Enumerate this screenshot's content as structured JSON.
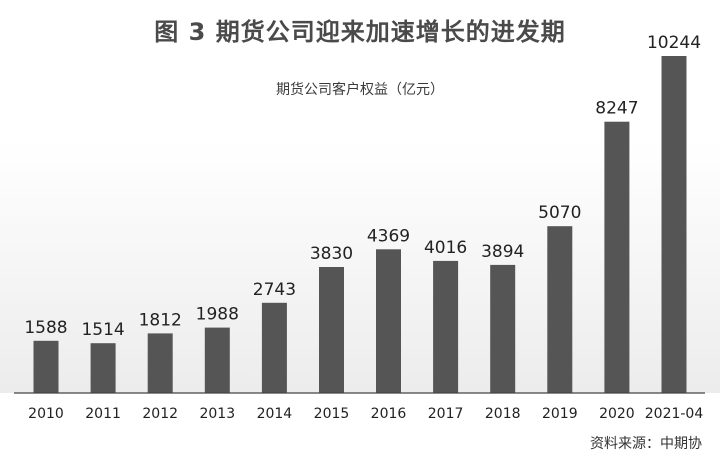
{
  "chart_data": {
    "type": "bar",
    "title": "图 3  期货公司迎来加速增长的进发期",
    "subtitle": "期货公司客户权益（亿元）",
    "categories": [
      "2010",
      "2011",
      "2012",
      "2013",
      "2014",
      "2015",
      "2016",
      "2017",
      "2018",
      "2019",
      "2020",
      "2021-04"
    ],
    "values": [
      1588,
      1514,
      1812,
      1988,
      2743,
      3830,
      4369,
      4016,
      3894,
      5070,
      8247,
      10244
    ],
    "ylim": [
      0,
      10244
    ],
    "grid": false,
    "bar_color": "#555555",
    "data_labels": true
  },
  "source": "资料来源：中期协"
}
